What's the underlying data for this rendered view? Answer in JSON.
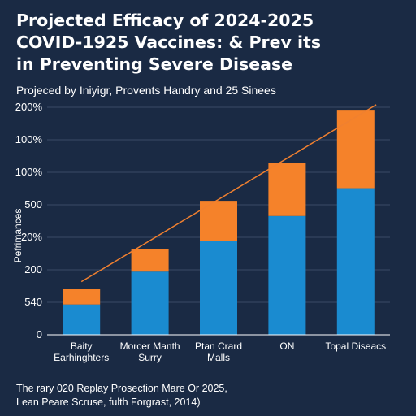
{
  "title": "Projected Efficacy of 2024-2025\nCOVID-1925 Vaccines: & Prev its\nin Preventing Severe Disease",
  "subtitle": "Projeced by Iniyigr, Provents Handry and 25 Sinees",
  "footnote": "The rary 020 Replay Prosection Mare Or 2025,\nLean Peare Scruse, fulth Forgrast, 2014)",
  "colors": {
    "background": "#1a2a44",
    "series_bottom": "#1a8bd0",
    "series_top": "#f5822a",
    "trend_line": "#f08030",
    "grid": "#3a4a66"
  },
  "chart_data": {
    "type": "bar",
    "stacked": true,
    "ylabel": "Pefrimances",
    "ytick_labels": [
      "0",
      "540",
      "200",
      "20%",
      "500",
      "100%",
      "100%",
      "200%"
    ],
    "categories": [
      "Baity\nEarhinghters",
      "Morcer Manth\nSurry",
      "Ptan Crard\nMalls",
      "ON",
      "Topal Diseacs"
    ],
    "series": [
      {
        "values": [
          1.2,
          2.5,
          3.7,
          4.7,
          5.8
        ]
      },
      {
        "values": [
          0.6,
          0.9,
          1.6,
          2.1,
          3.1
        ]
      }
    ],
    "trend": {
      "start": [
        0,
        2.1
      ],
      "end": [
        4.3,
        9.1
      ]
    },
    "ylim": [
      0,
      9.0
    ],
    "grid": true,
    "legend": "none"
  }
}
